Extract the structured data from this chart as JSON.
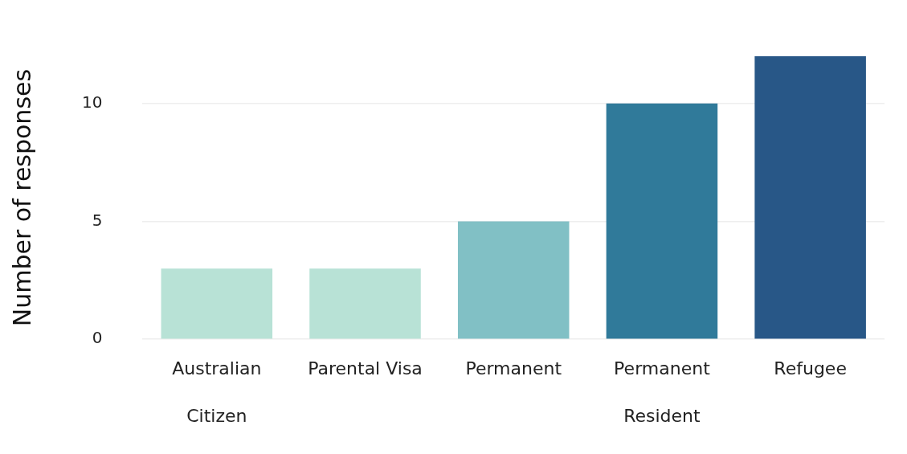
{
  "chart_data": {
    "type": "bar",
    "ylabel": "Number of responses",
    "categories": [
      "Australian\nCitizen",
      "Parental Visa",
      "Permanent",
      "Permanent\nResident",
      "Refugee"
    ],
    "values": [
      3,
      3,
      5,
      10,
      12
    ],
    "colors": [
      "#b8e2d6",
      "#b8e2d6",
      "#81c0c5",
      "#307a9a",
      "#285787"
    ],
    "ylim": [
      0,
      12
    ],
    "yticks": [
      0,
      5,
      10
    ],
    "grid": "y",
    "legend": false
  }
}
